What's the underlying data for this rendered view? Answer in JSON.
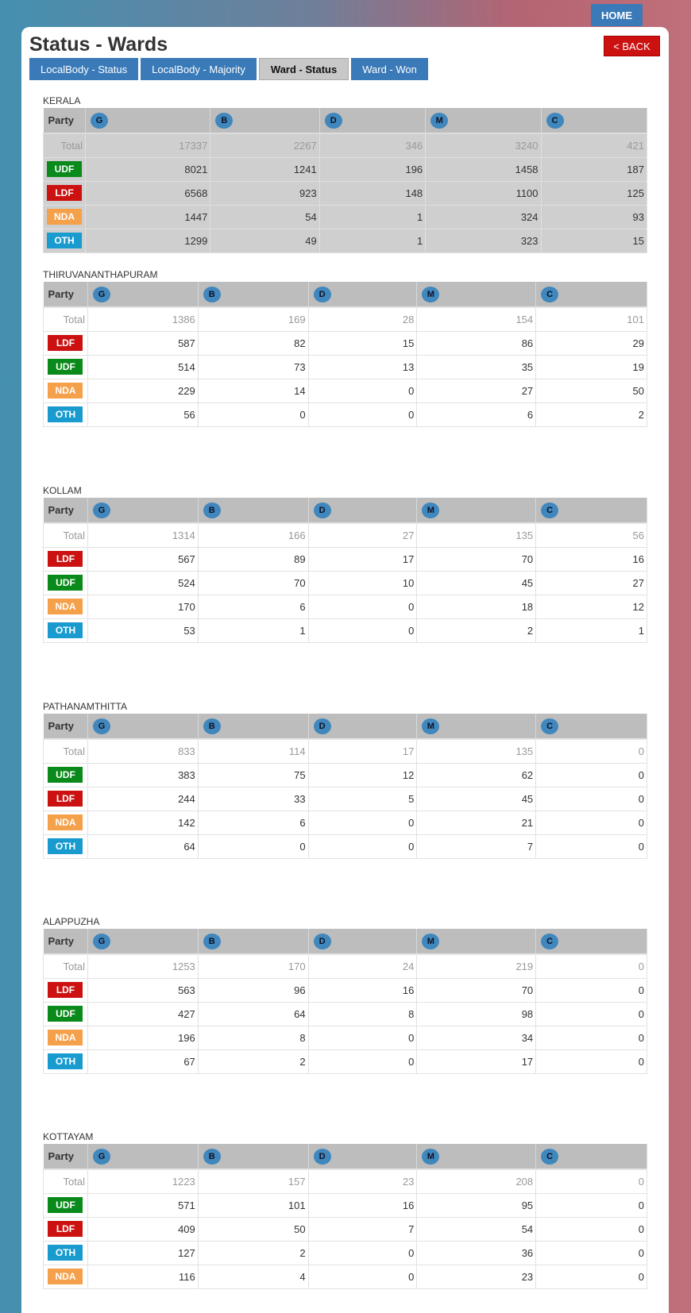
{
  "nav": {
    "home": "HOME",
    "back": "< BACK",
    "title": "Status - Wards",
    "tabs": [
      {
        "label": "LocalBody - Status",
        "active": false
      },
      {
        "label": "LocalBody - Majority",
        "active": false
      },
      {
        "label": "Ward - Status",
        "active": true
      },
      {
        "label": "Ward - Won",
        "active": false
      }
    ]
  },
  "party_colors": {
    "UDF": "#0a8a1a",
    "LDF": "#cc1111",
    "NDA": "#f5a04a",
    "OTH": "#1a9bd0"
  },
  "columns": {
    "party": "Party",
    "types": [
      "G",
      "B",
      "D",
      "M",
      "C"
    ]
  },
  "sections": [
    {
      "name": "KERALA",
      "total": {
        "label": "Total",
        "values": [
          "17337",
          "2267",
          "346",
          "3240",
          "421"
        ]
      },
      "rows": [
        {
          "party": "UDF",
          "values": [
            "8021",
            "1241",
            "196",
            "1458",
            "187"
          ]
        },
        {
          "party": "LDF",
          "values": [
            "6568",
            "923",
            "148",
            "1100",
            "125"
          ]
        },
        {
          "party": "NDA",
          "values": [
            "1447",
            "54",
            "1",
            "324",
            "93"
          ]
        },
        {
          "party": "OTH",
          "values": [
            "1299",
            "49",
            "1",
            "323",
            "15"
          ]
        }
      ]
    },
    {
      "name": "THIRUVANANTHAPURAM",
      "total": {
        "label": "Total",
        "values": [
          "1386",
          "169",
          "28",
          "154",
          "101"
        ]
      },
      "rows": [
        {
          "party": "LDF",
          "values": [
            "587",
            "82",
            "15",
            "86",
            "29"
          ]
        },
        {
          "party": "UDF",
          "values": [
            "514",
            "73",
            "13",
            "35",
            "19"
          ]
        },
        {
          "party": "NDA",
          "values": [
            "229",
            "14",
            "0",
            "27",
            "50"
          ]
        },
        {
          "party": "OTH",
          "values": [
            "56",
            "0",
            "0",
            "6",
            "2"
          ]
        }
      ]
    },
    {
      "name": "KOLLAM",
      "total": {
        "label": "Total",
        "values": [
          "1314",
          "166",
          "27",
          "135",
          "56"
        ]
      },
      "rows": [
        {
          "party": "LDF",
          "values": [
            "567",
            "89",
            "17",
            "70",
            "16"
          ]
        },
        {
          "party": "UDF",
          "values": [
            "524",
            "70",
            "10",
            "45",
            "27"
          ]
        },
        {
          "party": "NDA",
          "values": [
            "170",
            "6",
            "0",
            "18",
            "12"
          ]
        },
        {
          "party": "OTH",
          "values": [
            "53",
            "1",
            "0",
            "2",
            "1"
          ]
        }
      ]
    },
    {
      "name": "PATHANAMTHITTA",
      "total": {
        "label": "Total",
        "values": [
          "833",
          "114",
          "17",
          "135",
          "0"
        ]
      },
      "rows": [
        {
          "party": "UDF",
          "values": [
            "383",
            "75",
            "12",
            "62",
            "0"
          ]
        },
        {
          "party": "LDF",
          "values": [
            "244",
            "33",
            "5",
            "45",
            "0"
          ]
        },
        {
          "party": "NDA",
          "values": [
            "142",
            "6",
            "0",
            "21",
            "0"
          ]
        },
        {
          "party": "OTH",
          "values": [
            "64",
            "0",
            "0",
            "7",
            "0"
          ]
        }
      ]
    },
    {
      "name": "ALAPPUZHA",
      "total": {
        "label": "Total",
        "values": [
          "1253",
          "170",
          "24",
          "219",
          "0"
        ]
      },
      "rows": [
        {
          "party": "LDF",
          "values": [
            "563",
            "96",
            "16",
            "70",
            "0"
          ]
        },
        {
          "party": "UDF",
          "values": [
            "427",
            "64",
            "8",
            "98",
            "0"
          ]
        },
        {
          "party": "NDA",
          "values": [
            "196",
            "8",
            "0",
            "34",
            "0"
          ]
        },
        {
          "party": "OTH",
          "values": [
            "67",
            "2",
            "0",
            "17",
            "0"
          ]
        }
      ]
    },
    {
      "name": "KOTTAYAM",
      "total": {
        "label": "Total",
        "values": [
          "1223",
          "157",
          "23",
          "208",
          "0"
        ]
      },
      "rows": [
        {
          "party": "UDF",
          "values": [
            "571",
            "101",
            "16",
            "95",
            "0"
          ]
        },
        {
          "party": "LDF",
          "values": [
            "409",
            "50",
            "7",
            "54",
            "0"
          ]
        },
        {
          "party": "OTH",
          "values": [
            "127",
            "2",
            "0",
            "36",
            "0"
          ]
        },
        {
          "party": "NDA",
          "values": [
            "116",
            "4",
            "0",
            "23",
            "0"
          ]
        }
      ]
    }
  ]
}
